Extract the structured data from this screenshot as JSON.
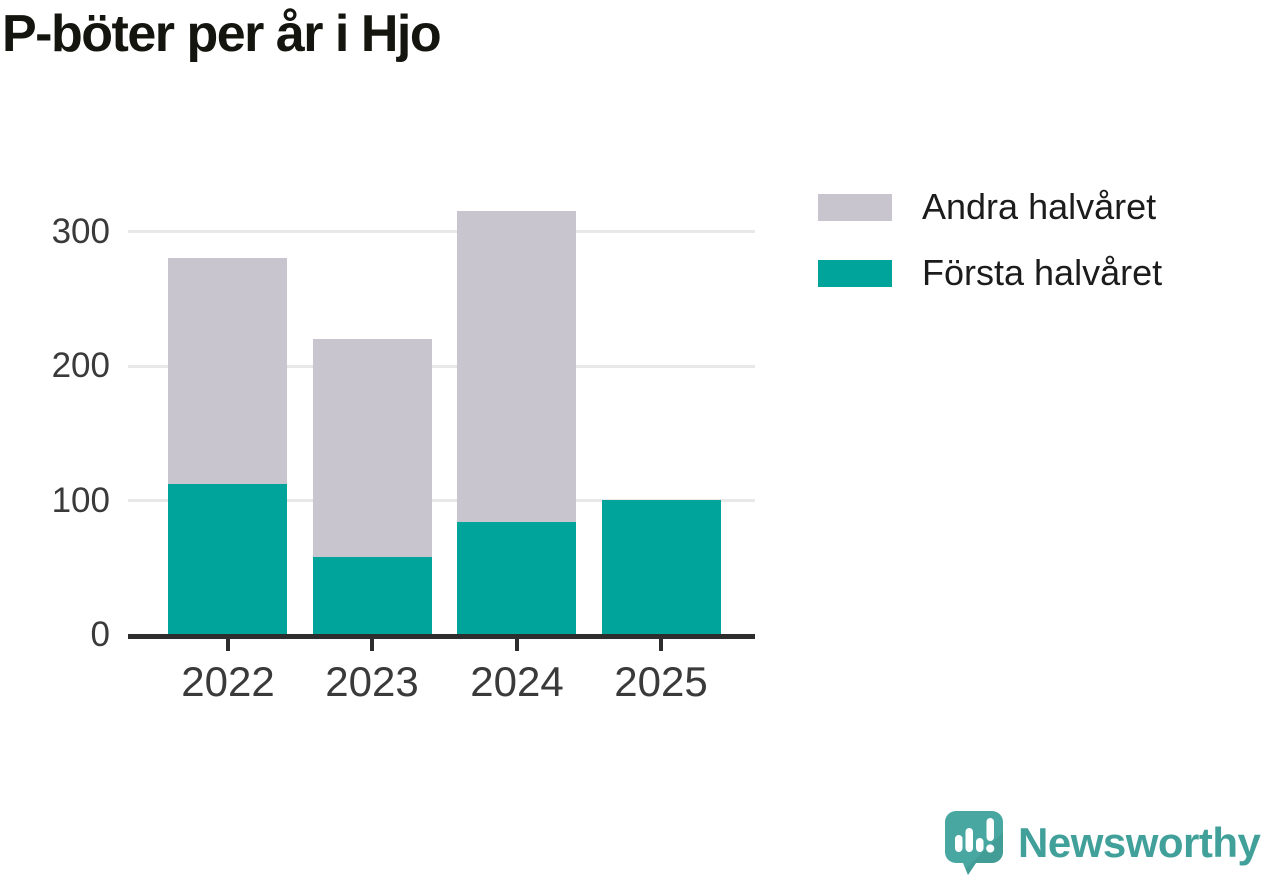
{
  "title": "P-böter per år i Hjo",
  "chart_data": {
    "type": "bar",
    "stacked": true,
    "title": "P-böter per år i Hjo",
    "categories": [
      "2022",
      "2023",
      "2024",
      "2025"
    ],
    "series": [
      {
        "name": "Första halvåret",
        "color": "#00a49b",
        "values": [
          112,
          58,
          84,
          100
        ]
      },
      {
        "name": "Andra halvåret",
        "color": "#c8c5cf",
        "values": [
          168,
          162,
          231,
          0
        ]
      }
    ],
    "totals": [
      280,
      220,
      315,
      100
    ],
    "xlabel": "",
    "ylabel": "",
    "yticks": [
      0,
      100,
      200,
      300
    ],
    "ylim": [
      0,
      325
    ],
    "grid": "horizontal",
    "legend_position": "top-right"
  },
  "legend": {
    "items": [
      {
        "label": "Andra halvåret",
        "color": "#c8c5cf"
      },
      {
        "label": "Första halvåret",
        "color": "#00a49b"
      }
    ]
  },
  "branding": {
    "name": "Newsworthy",
    "icon": "speech-bubble-bar-chart-exclamation-icon",
    "icon_color": "#48a7a1",
    "icon_shade_color": "#3e958f",
    "text_color": "#41a09a"
  }
}
